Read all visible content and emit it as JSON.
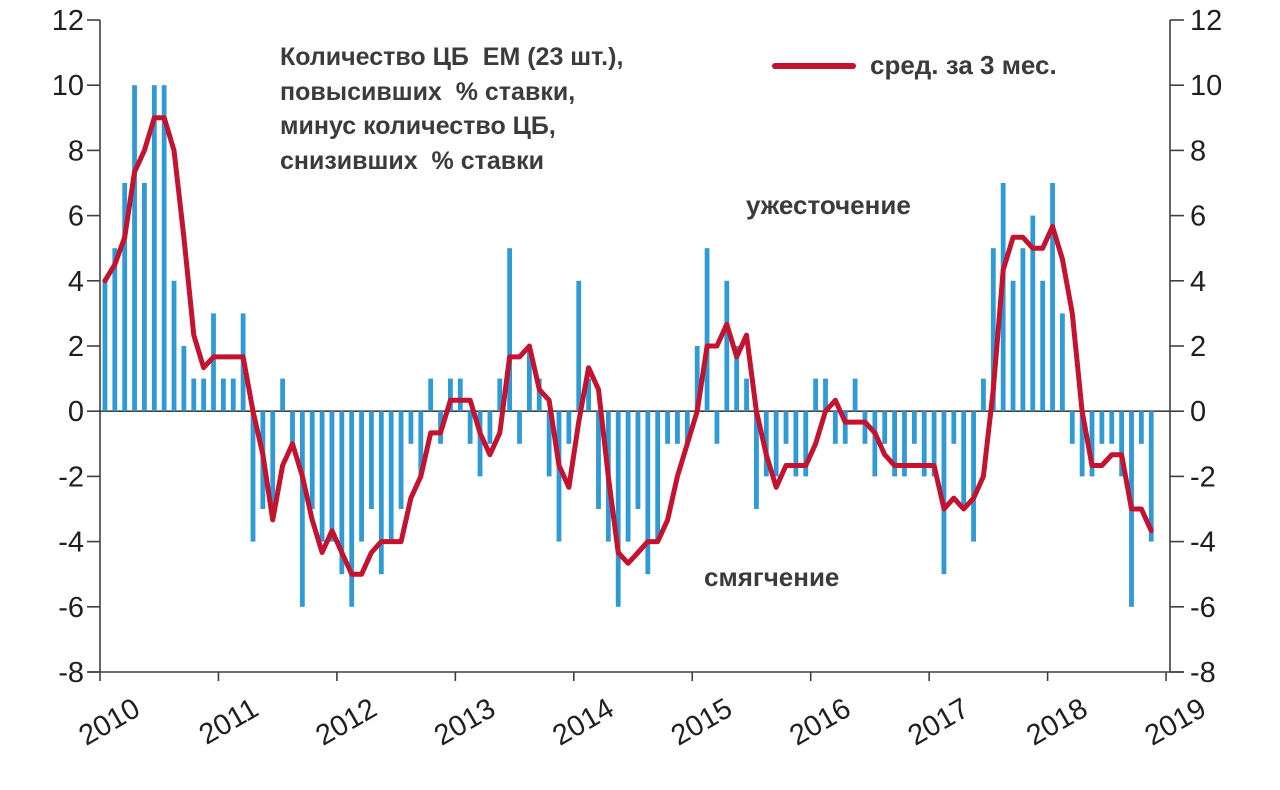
{
  "title_annotation": "Количество ЦБ  ЕМ (23 шт.),\nповысивших  % ставки,\nминус количество ЦБ,\nснизивших  % ставки",
  "legend": {
    "label": "сред. за 3 мес."
  },
  "annotations": {
    "upper": "ужесточение",
    "lower": "смягчение"
  },
  "colors": {
    "bar": "#2e9bd6",
    "line": "#c4122f",
    "axis": "#3f3f3f",
    "text": "#3b3b3b"
  },
  "chart_data": {
    "type": "bar",
    "title": "Количество ЦБ ЕМ (23 шт.), повысивших % ставки, минус количество ЦБ, снизивших % ставки",
    "frequency": "monthly",
    "months_start": "2010-01",
    "values": [
      4,
      5,
      7,
      10,
      7,
      10,
      10,
      4,
      2,
      1,
      1,
      3,
      1,
      1,
      3,
      -4,
      -3,
      -3,
      1,
      -1,
      -6,
      -3,
      -4,
      -4,
      -5,
      -6,
      -4,
      -3,
      -5,
      -4,
      -3,
      -1,
      -2,
      1,
      -1,
      1,
      1,
      -1,
      -2,
      -1,
      1,
      5,
      -1,
      2,
      1,
      -2,
      -4,
      -1,
      4,
      1,
      -3,
      -4,
      -6,
      -4,
      -3,
      -5,
      -4,
      -1,
      -1,
      -1,
      2,
      5,
      -1,
      4,
      2,
      1,
      -3,
      -2,
      -2,
      -1,
      -2,
      -2,
      1,
      1,
      -1,
      -1,
      1,
      -1,
      -2,
      -1,
      -2,
      -2,
      -1,
      -2,
      -2,
      -5,
      -1,
      -3,
      -4,
      1,
      5,
      7,
      4,
      5,
      6,
      4,
      7,
      3,
      -1,
      -2,
      -2,
      -1,
      -1,
      -2,
      -6,
      -1,
      -4
    ],
    "series": [
      {
        "name": "сред. за 3 мес.",
        "type": "line",
        "derivation": "3-month trailing moving average of values"
      }
    ],
    "x_tick_labels": [
      "2010",
      "2011",
      "2012",
      "2013",
      "2014",
      "2015",
      "2016",
      "2017",
      "2018",
      "2019"
    ],
    "y_ticks": [
      12,
      10,
      8,
      6,
      4,
      2,
      0,
      -2,
      -4,
      -6,
      -8
    ],
    "ylim": [
      -8,
      12
    ],
    "grid": false,
    "legend_position": "top-right",
    "upper_region_label": "ужесточение",
    "lower_region_label": "смягчение"
  }
}
